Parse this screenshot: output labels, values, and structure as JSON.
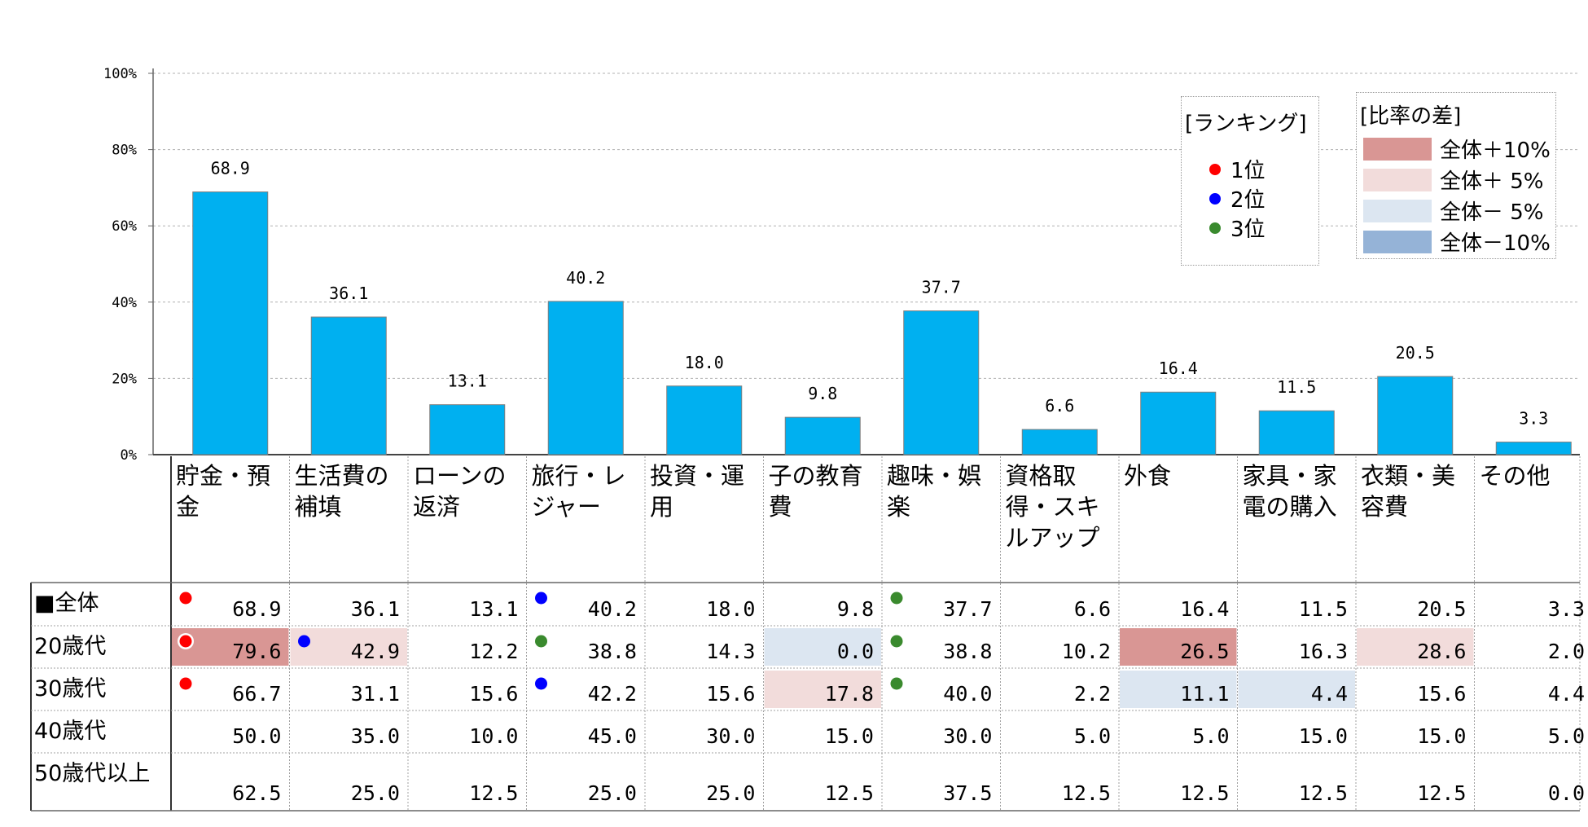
{
  "chart_data": {
    "type": "bar",
    "yticks": [
      "0%",
      "20%",
      "40%",
      "60%",
      "80%",
      "100%"
    ],
    "ylim": [
      0,
      100
    ],
    "categories": [
      [
        "貯金・預",
        "金"
      ],
      [
        "生活費の",
        "補填"
      ],
      [
        "ローンの",
        "返済"
      ],
      [
        "旅行・レ",
        "ジャー"
      ],
      [
        "投資・運",
        "用"
      ],
      [
        "子の教育",
        "費"
      ],
      [
        "趣味・娯",
        "楽"
      ],
      [
        "資格取",
        "得・スキ",
        "ルアップ"
      ],
      [
        "外食"
      ],
      [
        "家具・家",
        "電の購入"
      ],
      [
        "衣類・美",
        "容費"
      ],
      [
        "その他"
      ]
    ],
    "values": [
      68.9,
      36.1,
      13.1,
      40.2,
      18.0,
      9.8,
      37.7,
      6.6,
      16.4,
      11.5,
      20.5,
      3.3
    ],
    "value_labels": [
      "68.9",
      "36.1",
      "13.1",
      "40.2",
      "18.0",
      "9.8",
      "37.7",
      "6.6",
      "16.4",
      "11.5",
      "20.5",
      "3.3"
    ],
    "bar_color": "#00b0f0",
    "table": {
      "rows": [
        {
          "label": "■全体",
          "values": [
            "68.9",
            "36.1",
            "13.1",
            "40.2",
            "18.0",
            "9.8",
            "37.7",
            "6.6",
            "16.4",
            "11.5",
            "20.5",
            "3.3"
          ],
          "ranks": [
            1,
            0,
            0,
            2,
            0,
            0,
            3,
            0,
            0,
            0,
            0,
            0
          ],
          "diffs": [
            0,
            0,
            0,
            0,
            0,
            0,
            0,
            0,
            0,
            0,
            0,
            0
          ]
        },
        {
          "label": "20歳代",
          "values": [
            "79.6",
            "42.9",
            "12.2",
            "38.8",
            "14.3",
            "0.0",
            "38.8",
            "10.2",
            "26.5",
            "16.3",
            "28.6",
            "2.0"
          ],
          "ranks": [
            1,
            2,
            0,
            3,
            0,
            0,
            3,
            0,
            0,
            0,
            0,
            0
          ],
          "diffs": [
            2,
            1,
            0,
            0,
            0,
            -1,
            0,
            0,
            2,
            0,
            1,
            0
          ]
        },
        {
          "label": "30歳代",
          "values": [
            "66.7",
            "31.1",
            "15.6",
            "42.2",
            "15.6",
            "17.8",
            "40.0",
            "2.2",
            "11.1",
            "4.4",
            "15.6",
            "4.4"
          ],
          "ranks": [
            1,
            0,
            0,
            2,
            0,
            0,
            3,
            0,
            0,
            0,
            0,
            0
          ],
          "diffs": [
            0,
            0,
            0,
            0,
            0,
            1,
            0,
            0,
            -1,
            -1,
            0,
            0
          ]
        },
        {
          "label": "40歳代",
          "values": [
            "50.0",
            "35.0",
            "10.0",
            "45.0",
            "30.0",
            "15.0",
            "30.0",
            "5.0",
            "5.0",
            "15.0",
            "15.0",
            "5.0"
          ],
          "ranks": [
            0,
            0,
            0,
            0,
            0,
            0,
            0,
            0,
            0,
            0,
            0,
            0
          ],
          "diffs": [
            0,
            0,
            0,
            0,
            0,
            0,
            0,
            0,
            0,
            0,
            0,
            0
          ]
        },
        {
          "label": "50歳代以上",
          "values": [
            "62.5",
            "25.0",
            "12.5",
            "25.0",
            "25.0",
            "12.5",
            "37.5",
            "12.5",
            "12.5",
            "12.5",
            "12.5",
            "0.0"
          ],
          "ranks": [
            0,
            0,
            0,
            0,
            0,
            0,
            0,
            0,
            0,
            0,
            0,
            0
          ],
          "diffs": [
            0,
            0,
            0,
            0,
            0,
            0,
            0,
            0,
            0,
            0,
            0,
            0
          ]
        }
      ]
    },
    "rank_colors": {
      "1": "#ff0000",
      "2": "#0000ff",
      "3": "#3a8a2e"
    },
    "diff_colors": {
      "2": "#d99694",
      "1": "#f2dcdb",
      "-1": "#dce6f1",
      "-2": "#95b3d7"
    }
  },
  "legend_rank": {
    "title": "[ランキング]",
    "items": [
      {
        "label": "1位",
        "color": "#ff0000"
      },
      {
        "label": "2位",
        "color": "#0000ff"
      },
      {
        "label": "3位",
        "color": "#3a8a2e"
      }
    ]
  },
  "legend_diff": {
    "title": "[比率の差]",
    "items": [
      {
        "label": "全体＋10%",
        "color": "#d99694"
      },
      {
        "label": "全体＋ 5%",
        "color": "#f2dcdb"
      },
      {
        "label": "全体－ 5%",
        "color": "#dce6f1"
      },
      {
        "label": "全体－10%",
        "color": "#95b3d7"
      }
    ]
  }
}
